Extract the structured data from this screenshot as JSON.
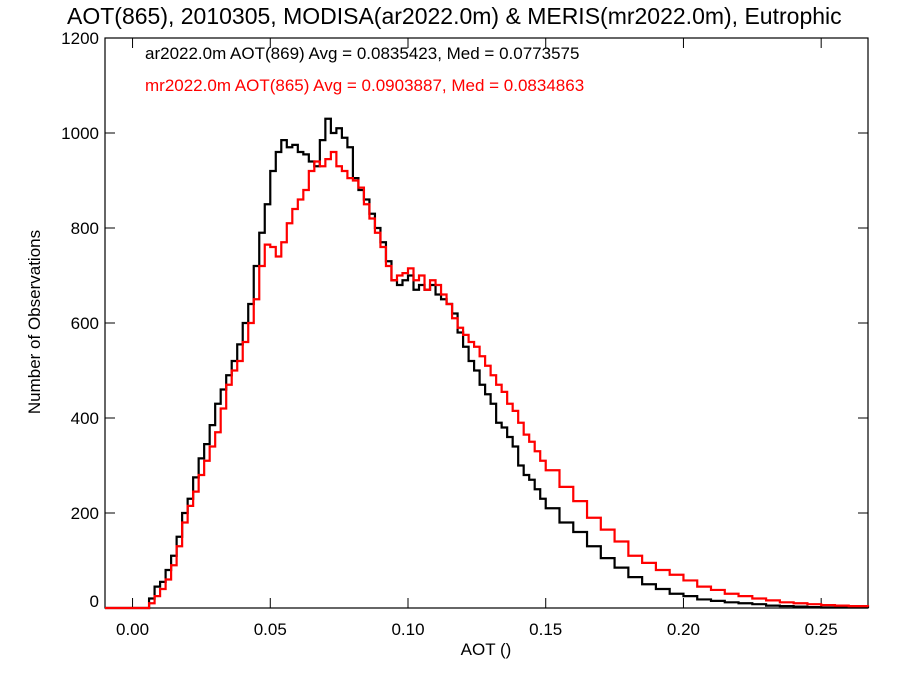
{
  "chart_data": {
    "type": "line",
    "title": "AOT(865), 2010305, MODISA(ar2022.0m) & MERIS(mr2022.0m), Eutrophic",
    "xlabel": "AOT ()",
    "ylabel": "Number of Observations",
    "xlim": [
      -0.01,
      0.267
    ],
    "ylim": [
      0,
      1200
    ],
    "xticks": [
      0.0,
      0.05,
      0.1,
      0.15,
      0.2,
      0.25
    ],
    "xtick_labels": [
      "0.00",
      "0.05",
      "0.10",
      "0.15",
      "0.20",
      "0.25"
    ],
    "yticks": [
      0,
      200,
      400,
      600,
      800,
      1000,
      1200
    ],
    "ytick_labels": [
      "0",
      "200",
      "400",
      "600",
      "800",
      "1000",
      "1200"
    ],
    "grid": false,
    "legend_position": "top-left",
    "series": [
      {
        "name": "ar2022.0m AOT(869) Avg = 0.0835423, Med = 0.0773575",
        "color": "#000000",
        "step": true,
        "points": [
          [
            -0.01,
            0
          ],
          [
            0.004,
            0
          ],
          [
            0.006,
            20
          ],
          [
            0.008,
            45
          ],
          [
            0.01,
            55
          ],
          [
            0.012,
            80
          ],
          [
            0.014,
            110
          ],
          [
            0.016,
            150
          ],
          [
            0.018,
            200
          ],
          [
            0.02,
            230
          ],
          [
            0.022,
            275
          ],
          [
            0.024,
            315
          ],
          [
            0.026,
            345
          ],
          [
            0.028,
            385
          ],
          [
            0.03,
            430
          ],
          [
            0.032,
            460
          ],
          [
            0.034,
            490
          ],
          [
            0.036,
            520
          ],
          [
            0.038,
            555
          ],
          [
            0.04,
            600
          ],
          [
            0.042,
            640
          ],
          [
            0.044,
            720
          ],
          [
            0.046,
            790
          ],
          [
            0.048,
            850
          ],
          [
            0.05,
            920
          ],
          [
            0.052,
            960
          ],
          [
            0.054,
            985
          ],
          [
            0.056,
            970
          ],
          [
            0.058,
            975
          ],
          [
            0.06,
            960
          ],
          [
            0.062,
            955
          ],
          [
            0.064,
            940
          ],
          [
            0.066,
            930
          ],
          [
            0.068,
            985
          ],
          [
            0.07,
            1030
          ],
          [
            0.072,
            1000
          ],
          [
            0.074,
            1010
          ],
          [
            0.076,
            990
          ],
          [
            0.078,
            970
          ],
          [
            0.08,
            905
          ],
          [
            0.082,
            880
          ],
          [
            0.084,
            860
          ],
          [
            0.086,
            830
          ],
          [
            0.088,
            800
          ],
          [
            0.09,
            770
          ],
          [
            0.092,
            730
          ],
          [
            0.094,
            690
          ],
          [
            0.096,
            680
          ],
          [
            0.098,
            690
          ],
          [
            0.1,
            700
          ],
          [
            0.102,
            670
          ],
          [
            0.104,
            680
          ],
          [
            0.106,
            670
          ],
          [
            0.108,
            680
          ],
          [
            0.11,
            660
          ],
          [
            0.112,
            650
          ],
          [
            0.114,
            640
          ],
          [
            0.116,
            620
          ],
          [
            0.118,
            580
          ],
          [
            0.12,
            550
          ],
          [
            0.122,
            520
          ],
          [
            0.124,
            500
          ],
          [
            0.126,
            470
          ],
          [
            0.128,
            450
          ],
          [
            0.13,
            430
          ],
          [
            0.132,
            390
          ],
          [
            0.134,
            380
          ],
          [
            0.136,
            360
          ],
          [
            0.138,
            340
          ],
          [
            0.14,
            300
          ],
          [
            0.142,
            280
          ],
          [
            0.144,
            270
          ],
          [
            0.146,
            250
          ],
          [
            0.148,
            230
          ],
          [
            0.15,
            210
          ],
          [
            0.155,
            180
          ],
          [
            0.16,
            160
          ],
          [
            0.165,
            130
          ],
          [
            0.17,
            105
          ],
          [
            0.175,
            85
          ],
          [
            0.18,
            65
          ],
          [
            0.185,
            50
          ],
          [
            0.19,
            40
          ],
          [
            0.195,
            30
          ],
          [
            0.2,
            25
          ],
          [
            0.205,
            18
          ],
          [
            0.21,
            15
          ],
          [
            0.215,
            12
          ],
          [
            0.22,
            10
          ],
          [
            0.225,
            8
          ],
          [
            0.23,
            5
          ],
          [
            0.235,
            4
          ],
          [
            0.24,
            3
          ],
          [
            0.245,
            2
          ],
          [
            0.25,
            1
          ],
          [
            0.267,
            0
          ]
        ]
      },
      {
        "name": "mr2022.0m AOT(865) Avg = 0.0903887, Med = 0.0834863",
        "color": "#ff0000",
        "step": true,
        "points": [
          [
            -0.01,
            0
          ],
          [
            0.004,
            0
          ],
          [
            0.006,
            10
          ],
          [
            0.008,
            25
          ],
          [
            0.01,
            40
          ],
          [
            0.012,
            60
          ],
          [
            0.014,
            90
          ],
          [
            0.016,
            130
          ],
          [
            0.018,
            180
          ],
          [
            0.02,
            215
          ],
          [
            0.022,
            245
          ],
          [
            0.024,
            280
          ],
          [
            0.026,
            310
          ],
          [
            0.028,
            340
          ],
          [
            0.03,
            370
          ],
          [
            0.032,
            420
          ],
          [
            0.034,
            470
          ],
          [
            0.036,
            500
          ],
          [
            0.038,
            520
          ],
          [
            0.04,
            560
          ],
          [
            0.042,
            600
          ],
          [
            0.044,
            650
          ],
          [
            0.046,
            720
          ],
          [
            0.048,
            765
          ],
          [
            0.05,
            760
          ],
          [
            0.052,
            740
          ],
          [
            0.054,
            770
          ],
          [
            0.056,
            810
          ],
          [
            0.058,
            840
          ],
          [
            0.06,
            860
          ],
          [
            0.062,
            880
          ],
          [
            0.064,
            920
          ],
          [
            0.066,
            940
          ],
          [
            0.068,
            930
          ],
          [
            0.07,
            945
          ],
          [
            0.072,
            960
          ],
          [
            0.074,
            930
          ],
          [
            0.076,
            920
          ],
          [
            0.078,
            905
          ],
          [
            0.08,
            900
          ],
          [
            0.082,
            885
          ],
          [
            0.084,
            850
          ],
          [
            0.086,
            820
          ],
          [
            0.088,
            790
          ],
          [
            0.09,
            760
          ],
          [
            0.092,
            720
          ],
          [
            0.094,
            690
          ],
          [
            0.096,
            700
          ],
          [
            0.098,
            705
          ],
          [
            0.1,
            715
          ],
          [
            0.102,
            690
          ],
          [
            0.104,
            700
          ],
          [
            0.106,
            670
          ],
          [
            0.108,
            690
          ],
          [
            0.11,
            680
          ],
          [
            0.112,
            660
          ],
          [
            0.114,
            640
          ],
          [
            0.116,
            610
          ],
          [
            0.118,
            590
          ],
          [
            0.12,
            575
          ],
          [
            0.122,
            560
          ],
          [
            0.124,
            550
          ],
          [
            0.126,
            530
          ],
          [
            0.128,
            510
          ],
          [
            0.13,
            490
          ],
          [
            0.132,
            470
          ],
          [
            0.134,
            455
          ],
          [
            0.136,
            430
          ],
          [
            0.138,
            415
          ],
          [
            0.14,
            390
          ],
          [
            0.142,
            365
          ],
          [
            0.144,
            350
          ],
          [
            0.146,
            330
          ],
          [
            0.148,
            310
          ],
          [
            0.15,
            290
          ],
          [
            0.155,
            255
          ],
          [
            0.16,
            225
          ],
          [
            0.165,
            190
          ],
          [
            0.17,
            165
          ],
          [
            0.175,
            140
          ],
          [
            0.18,
            110
          ],
          [
            0.185,
            95
          ],
          [
            0.19,
            80
          ],
          [
            0.195,
            70
          ],
          [
            0.2,
            58
          ],
          [
            0.205,
            45
          ],
          [
            0.21,
            38
          ],
          [
            0.215,
            30
          ],
          [
            0.22,
            25
          ],
          [
            0.225,
            20
          ],
          [
            0.23,
            16
          ],
          [
            0.235,
            12
          ],
          [
            0.24,
            10
          ],
          [
            0.245,
            8
          ],
          [
            0.25,
            6
          ],
          [
            0.255,
            5
          ],
          [
            0.26,
            4
          ],
          [
            0.267,
            3
          ]
        ]
      }
    ]
  }
}
